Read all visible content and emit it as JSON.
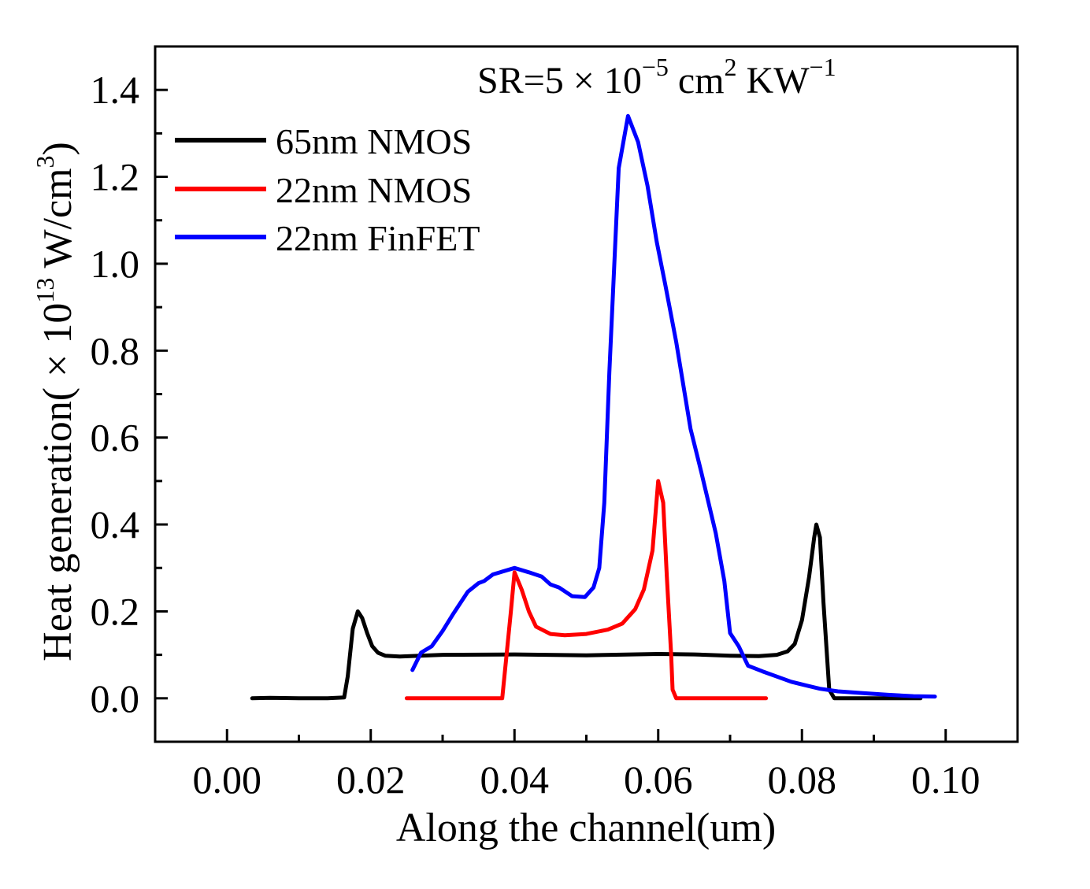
{
  "chart_data": {
    "type": "line",
    "title": "",
    "annotation": {
      "prefix": "SR=5 × 10",
      "exp1": "−5",
      "mid": " cm",
      "exp2": "2",
      "unit": " KW",
      "exp3": "−1"
    },
    "xlabel": "Along the channel(um)",
    "ylabel": {
      "prefix": "Heat generation( × 10",
      "exp": "13",
      "unit": " W/cm",
      "exp2": "3",
      "suffix": ")"
    },
    "xlim": [
      -0.01,
      0.11
    ],
    "ylim": [
      -0.1,
      1.5
    ],
    "xticks": [
      0.0,
      0.02,
      0.04,
      0.06,
      0.08,
      0.1
    ],
    "xtick_labels": [
      "0.00",
      "0.02",
      "0.04",
      "0.06",
      "0.08",
      "0.10"
    ],
    "yticks": [
      0.0,
      0.2,
      0.4,
      0.6,
      0.8,
      1.0,
      1.2,
      1.4
    ],
    "ytick_labels": [
      "0.0",
      "0.2",
      "0.4",
      "0.6",
      "0.8",
      "1.0",
      "1.2",
      "1.4"
    ],
    "grid": false,
    "legend_position": "top-left",
    "series": [
      {
        "name": "65nm NMOS",
        "color": "#000000",
        "x": [
          0.0035,
          0.006,
          0.01,
          0.014,
          0.0163,
          0.0168,
          0.0175,
          0.0182,
          0.0188,
          0.0195,
          0.0202,
          0.021,
          0.022,
          0.024,
          0.03,
          0.04,
          0.05,
          0.06,
          0.065,
          0.07,
          0.074,
          0.0765,
          0.078,
          0.079,
          0.08,
          0.081,
          0.0817,
          0.082,
          0.0825,
          0.083,
          0.0838,
          0.0845,
          0.09,
          0.0965
        ],
        "y": [
          0.0,
          0.001,
          0.0,
          0.0,
          0.002,
          0.05,
          0.16,
          0.2,
          0.185,
          0.15,
          0.12,
          0.105,
          0.098,
          0.096,
          0.1,
          0.101,
          0.099,
          0.102,
          0.101,
          0.098,
          0.097,
          0.1,
          0.108,
          0.125,
          0.18,
          0.28,
          0.37,
          0.4,
          0.37,
          0.22,
          0.02,
          0.0,
          0.0,
          0.0
        ]
      },
      {
        "name": "22nm NMOS",
        "color": "#ff0000",
        "x": [
          0.025,
          0.03,
          0.035,
          0.0383,
          0.0395,
          0.04,
          0.041,
          0.042,
          0.043,
          0.045,
          0.047,
          0.05,
          0.053,
          0.055,
          0.0568,
          0.058,
          0.0592,
          0.06,
          0.0607,
          0.0612,
          0.0618,
          0.062,
          0.0625,
          0.065,
          0.07,
          0.075
        ],
        "y": [
          0.0,
          0.0,
          0.0,
          0.0,
          0.2,
          0.29,
          0.25,
          0.2,
          0.165,
          0.148,
          0.145,
          0.148,
          0.158,
          0.172,
          0.205,
          0.25,
          0.34,
          0.5,
          0.45,
          0.28,
          0.1,
          0.02,
          0.0,
          0.0,
          0.0,
          0.0
        ]
      },
      {
        "name": "22nm FinFET",
        "color": "#0000ff",
        "x": [
          0.0258,
          0.027,
          0.0285,
          0.03,
          0.0315,
          0.0335,
          0.035,
          0.0358,
          0.037,
          0.04,
          0.042,
          0.0438,
          0.045,
          0.0462,
          0.048,
          0.0498,
          0.051,
          0.0518,
          0.0525,
          0.0532,
          0.0545,
          0.0558,
          0.0572,
          0.0585,
          0.0598,
          0.061,
          0.0625,
          0.0645,
          0.066,
          0.068,
          0.0692,
          0.07,
          0.0712,
          0.0725,
          0.0745,
          0.0765,
          0.0785,
          0.0805,
          0.0825,
          0.085,
          0.0885,
          0.092,
          0.0955,
          0.0985
        ],
        "y": [
          0.065,
          0.105,
          0.12,
          0.155,
          0.195,
          0.245,
          0.265,
          0.27,
          0.285,
          0.3,
          0.29,
          0.28,
          0.262,
          0.255,
          0.235,
          0.233,
          0.255,
          0.3,
          0.45,
          0.75,
          1.22,
          1.34,
          1.28,
          1.18,
          1.05,
          0.95,
          0.82,
          0.62,
          0.52,
          0.38,
          0.27,
          0.15,
          0.12,
          0.075,
          0.062,
          0.05,
          0.038,
          0.03,
          0.022,
          0.016,
          0.012,
          0.008,
          0.005,
          0.004
        ]
      }
    ]
  }
}
